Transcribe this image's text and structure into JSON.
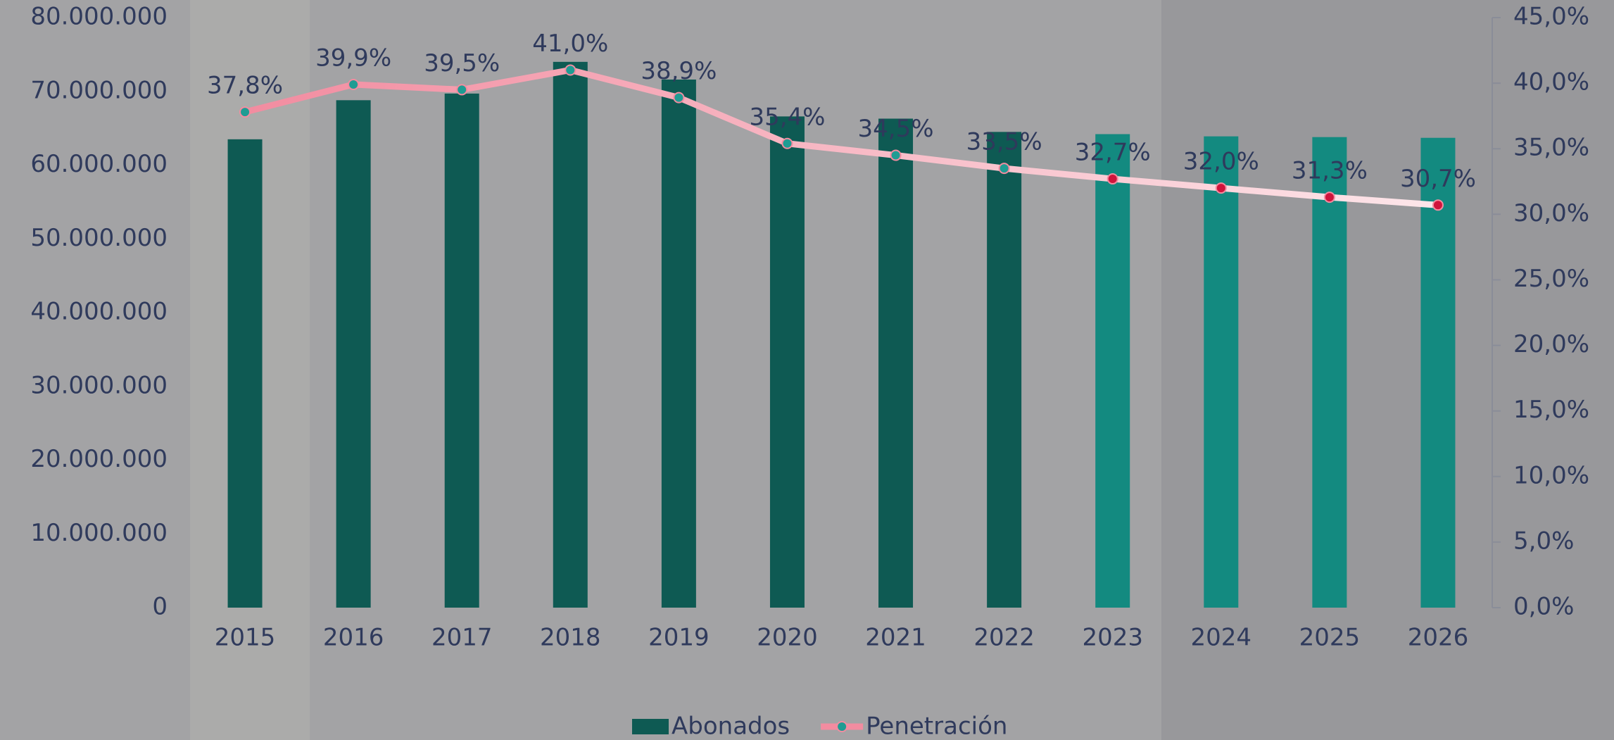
{
  "chart_data": {
    "type": "bar_line",
    "categories": [
      "2015",
      "2016",
      "2017",
      "2018",
      "2019",
      "2020",
      "2021",
      "2022",
      "2023",
      "2024",
      "2025",
      "2026"
    ],
    "series": [
      {
        "name": "Abonados",
        "type": "bar",
        "color": "#0e5a53",
        "colors": [
          "#0e5a53",
          "#0e5a53",
          "#0e5a53",
          "#0e5a53",
          "#0e5a53",
          "#0e5a53",
          "#0e5a53",
          "#0e5a53",
          "#138a80",
          "#138a80",
          "#138a80",
          "#138a80"
        ],
        "values": [
          63500000,
          68800000,
          69700000,
          74000000,
          71600000,
          66600000,
          66300000,
          64500000,
          64200000,
          63900000,
          63800000,
          63700000
        ]
      },
      {
        "name": "Penetración",
        "type": "line",
        "axis": "y2",
        "color": "#f28ca0",
        "marker_colors": [
          "#1f9c93",
          "#1f9c93",
          "#1f9c93",
          "#1f9c93",
          "#1f9c93",
          "#1f9c93",
          "#1f9c93",
          "#1f9c93",
          "#d0143c",
          "#d0143c",
          "#d0143c",
          "#d0143c"
        ],
        "values": [
          37.8,
          39.9,
          39.5,
          41.0,
          38.9,
          35.4,
          34.5,
          33.5,
          32.7,
          32.0,
          31.3,
          30.7
        ],
        "value_labels": [
          "37,8%",
          "39,9%",
          "39,5%",
          "41,0%",
          "38,9%",
          "35,4%",
          "34,5%",
          "33,5%",
          "32,7%",
          "32,0%",
          "31,3%",
          "30,7%"
        ]
      }
    ],
    "ylim": [
      0,
      80000000
    ],
    "yticks": [
      0,
      {
        "value": 10000000,
        "label": "10.000.000"
      },
      {
        "value": 20000000,
        "label": "20.000.000"
      },
      {
        "value": 30000000,
        "label": "30.000.000"
      },
      {
        "value": 40000000,
        "label": "40.000.000"
      },
      {
        "value": 50000000,
        "label": "50.000.000"
      },
      {
        "value": 60000000,
        "label": "60.000.000"
      },
      {
        "value": 70000000,
        "label": "70.000.000"
      },
      {
        "value": 80000000,
        "label": "80.000.000"
      }
    ],
    "y2lim": [
      0,
      45
    ],
    "y2ticks": [
      {
        "value": 0,
        "label": "0,0%"
      },
      {
        "value": 5,
        "label": "5,0%"
      },
      {
        "value": 10,
        "label": "10,0%"
      },
      {
        "value": 15,
        "label": "15,0%"
      },
      {
        "value": 20,
        "label": "20,0%"
      },
      {
        "value": 25,
        "label": "25,0%"
      },
      {
        "value": 30,
        "label": "30,0%"
      },
      {
        "value": 35,
        "label": "35,0%"
      },
      {
        "value": 40,
        "label": "40,0%"
      },
      {
        "value": 45,
        "label": "45,0%"
      }
    ],
    "legend": "bottom"
  }
}
